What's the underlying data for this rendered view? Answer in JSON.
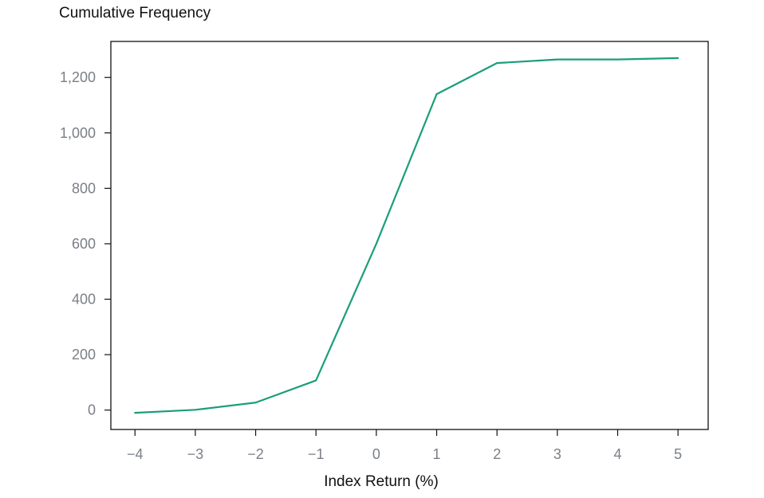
{
  "chart_data": {
    "type": "line",
    "title": "",
    "ylabel": "Cumulative Frequency",
    "xlabel": "Index Return (%)",
    "xlim": [
      -4.4,
      5.5
    ],
    "ylim": [
      -70,
      1330
    ],
    "x_ticks": [
      {
        "value": -4,
        "label": "−4"
      },
      {
        "value": -3,
        "label": "−3"
      },
      {
        "value": -2,
        "label": "−2"
      },
      {
        "value": -1,
        "label": "−1"
      },
      {
        "value": 0,
        "label": "0"
      },
      {
        "value": 1,
        "label": "1"
      },
      {
        "value": 2,
        "label": "2"
      },
      {
        "value": 3,
        "label": "3"
      },
      {
        "value": 4,
        "label": "4"
      },
      {
        "value": 5,
        "label": "5"
      }
    ],
    "y_ticks": [
      {
        "value": 0,
        "label": "0"
      },
      {
        "value": 200,
        "label": "200"
      },
      {
        "value": 400,
        "label": "400"
      },
      {
        "value": 600,
        "label": "600"
      },
      {
        "value": 800,
        "label": "800"
      },
      {
        "value": 1000,
        "label": "1,000"
      },
      {
        "value": 1200,
        "label": "1,200"
      }
    ],
    "grid": false,
    "legend": "none",
    "series": [
      {
        "color": "#1a9e7a",
        "points": [
          {
            "x": -4,
            "y": -10
          },
          {
            "x": -3,
            "y": 1
          },
          {
            "x": -2,
            "y": 27
          },
          {
            "x": -1,
            "y": 107
          },
          {
            "x": 0,
            "y": 600
          },
          {
            "x": 1,
            "y": 1140
          },
          {
            "x": 2,
            "y": 1252
          },
          {
            "x": 3,
            "y": 1265
          },
          {
            "x": 4,
            "y": 1265
          },
          {
            "x": 5,
            "y": 1270
          }
        ]
      }
    ]
  }
}
